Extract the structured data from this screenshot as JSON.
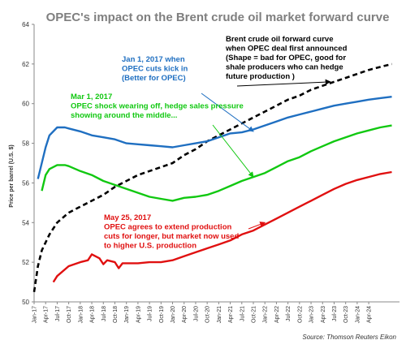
{
  "chart_data": {
    "type": "line",
    "title": "OPEC's impact on the Brent crude oil market forward curve",
    "ylabel": "Price per barrel (U.S. $)",
    "xlabel": "",
    "ylim": [
      50,
      64
    ],
    "yticks": [
      50,
      52,
      54,
      56,
      58,
      60,
      62,
      64
    ],
    "x_range": [
      "Jan-17",
      "Dec-24"
    ],
    "x_tick_labels": [
      "Jan-17",
      "Apr-17",
      "Jul-17",
      "Oct-17",
      "Jan-18",
      "Apr-18",
      "Jul-18",
      "Oct-18",
      "Jan-19",
      "Apr-19",
      "Jul-19",
      "Oct-19",
      "Jan-20",
      "Apr-20",
      "Jul-20",
      "Oct-20",
      "Jan-21",
      "Apr-21",
      "Jul-21",
      "Oct-21",
      "Jan-22",
      "Apr-22",
      "Jul-22",
      "Oct-22",
      "Jan-23",
      "Apr-23",
      "Jul-23",
      "Oct-23",
      "Jan-24",
      "Apr-24"
    ],
    "grid": false,
    "legend": "none",
    "source": "Source: Thomson Reuters Eikon",
    "series": [
      {
        "key": "dec2016",
        "color": "#000000",
        "dashed": true,
        "points": [
          [
            "Jan-17",
            50.5
          ],
          [
            "Feb-17",
            51.8
          ],
          [
            "Mar-17",
            52.6
          ],
          [
            "May-17",
            53.4
          ],
          [
            "Jul-17",
            54.0
          ],
          [
            "Oct-17",
            54.5
          ],
          [
            "Jan-18",
            54.8
          ],
          [
            "Apr-18",
            55.1
          ],
          [
            "Jul-18",
            55.4
          ],
          [
            "Oct-18",
            55.8
          ],
          [
            "Jan-19",
            56.1
          ],
          [
            "Apr-19",
            56.4
          ],
          [
            "Jul-19",
            56.6
          ],
          [
            "Oct-19",
            56.8
          ],
          [
            "Jan-20",
            57.0
          ],
          [
            "Apr-20",
            57.4
          ],
          [
            "Jul-20",
            57.7
          ],
          [
            "Oct-20",
            58.1
          ],
          [
            "Jan-21",
            58.4
          ],
          [
            "Apr-21",
            58.7
          ],
          [
            "Jul-21",
            59.0
          ],
          [
            "Oct-21",
            59.3
          ],
          [
            "Jan-22",
            59.6
          ],
          [
            "Apr-22",
            59.9
          ],
          [
            "Jul-22",
            60.2
          ],
          [
            "Oct-22",
            60.4
          ],
          [
            "Jan-23",
            60.7
          ],
          [
            "Apr-23",
            60.9
          ],
          [
            "Jul-23",
            61.1
          ],
          [
            "Oct-23",
            61.3
          ],
          [
            "Jan-24",
            61.5
          ],
          [
            "Apr-24",
            61.7
          ],
          [
            "Jul-24",
            61.85
          ],
          [
            "Oct-24",
            62.0
          ]
        ]
      },
      {
        "key": "jan2017",
        "color": "#1f6fc1",
        "dashed": false,
        "points": [
          [
            "Feb-17",
            56.2
          ],
          [
            "Apr-17",
            57.8
          ],
          [
            "May-17",
            58.4
          ],
          [
            "Jul-17",
            58.8
          ],
          [
            "Sep-17",
            58.8
          ],
          [
            "Oct-17",
            58.75
          ],
          [
            "Jan-18",
            58.6
          ],
          [
            "Apr-18",
            58.4
          ],
          [
            "Jul-18",
            58.3
          ],
          [
            "Oct-18",
            58.2
          ],
          [
            "Jan-19",
            58.0
          ],
          [
            "Apr-19",
            57.95
          ],
          [
            "Jul-19",
            57.9
          ],
          [
            "Oct-19",
            57.85
          ],
          [
            "Jan-20",
            57.8
          ],
          [
            "Apr-20",
            57.9
          ],
          [
            "Jul-20",
            58.0
          ],
          [
            "Oct-20",
            58.1
          ],
          [
            "Jan-21",
            58.3
          ],
          [
            "Apr-21",
            58.5
          ],
          [
            "Jul-21",
            58.55
          ],
          [
            "Oct-21",
            58.7
          ],
          [
            "Jan-22",
            58.9
          ],
          [
            "Apr-22",
            59.1
          ],
          [
            "Jul-22",
            59.3
          ],
          [
            "Oct-22",
            59.45
          ],
          [
            "Jan-23",
            59.6
          ],
          [
            "Apr-23",
            59.75
          ],
          [
            "Jul-23",
            59.9
          ],
          [
            "Oct-23",
            60.0
          ],
          [
            "Jan-24",
            60.1
          ],
          [
            "Apr-24",
            60.2
          ],
          [
            "Jul-24",
            60.28
          ],
          [
            "Oct-24",
            60.35
          ]
        ]
      },
      {
        "key": "mar2017",
        "color": "#11c811",
        "dashed": false,
        "points": [
          [
            "Mar-17",
            55.6
          ],
          [
            "Apr-17",
            56.4
          ],
          [
            "May-17",
            56.7
          ],
          [
            "Jul-17",
            56.9
          ],
          [
            "Sep-17",
            56.9
          ],
          [
            "Oct-17",
            56.85
          ],
          [
            "Jan-18",
            56.6
          ],
          [
            "Apr-18",
            56.4
          ],
          [
            "Jul-18",
            56.1
          ],
          [
            "Oct-18",
            55.9
          ],
          [
            "Jan-19",
            55.7
          ],
          [
            "Apr-19",
            55.5
          ],
          [
            "Jul-19",
            55.3
          ],
          [
            "Oct-19",
            55.2
          ],
          [
            "Jan-20",
            55.1
          ],
          [
            "Apr-20",
            55.25
          ],
          [
            "Jul-20",
            55.3
          ],
          [
            "Oct-20",
            55.4
          ],
          [
            "Jan-21",
            55.6
          ],
          [
            "Apr-21",
            55.85
          ],
          [
            "Jul-21",
            56.1
          ],
          [
            "Oct-21",
            56.3
          ],
          [
            "Jan-22",
            56.5
          ],
          [
            "Apr-22",
            56.8
          ],
          [
            "Jul-22",
            57.1
          ],
          [
            "Oct-22",
            57.3
          ],
          [
            "Jan-23",
            57.6
          ],
          [
            "Apr-23",
            57.85
          ],
          [
            "Jul-23",
            58.1
          ],
          [
            "Oct-23",
            58.3
          ],
          [
            "Jan-24",
            58.5
          ],
          [
            "Apr-24",
            58.65
          ],
          [
            "Jul-24",
            58.8
          ],
          [
            "Oct-24",
            58.9
          ]
        ]
      },
      {
        "key": "may2017",
        "color": "#e01010",
        "dashed": false,
        "points": [
          [
            "Jun-17",
            51.0
          ],
          [
            "Jul-17",
            51.3
          ],
          [
            "Oct-17",
            51.8
          ],
          [
            "Jan-18",
            52.0
          ],
          [
            "Mar-18",
            52.1
          ],
          [
            "Apr-18",
            52.4
          ],
          [
            "Jun-18",
            52.2
          ],
          [
            "Jul-18",
            51.9
          ],
          [
            "Aug-18",
            52.1
          ],
          [
            "Oct-18",
            52.0
          ],
          [
            "Nov-18",
            51.7
          ],
          [
            "Dec-18",
            51.95
          ],
          [
            "Jan-19",
            51.95
          ],
          [
            "Apr-19",
            51.95
          ],
          [
            "Jul-19",
            52.0
          ],
          [
            "Oct-19",
            52.0
          ],
          [
            "Jan-20",
            52.1
          ],
          [
            "Apr-20",
            52.3
          ],
          [
            "Jul-20",
            52.5
          ],
          [
            "Oct-20",
            52.7
          ],
          [
            "Jan-21",
            52.9
          ],
          [
            "Apr-21",
            53.1
          ],
          [
            "Jul-21",
            53.4
          ],
          [
            "Oct-21",
            53.6
          ],
          [
            "Jan-22",
            53.9
          ],
          [
            "Apr-22",
            54.2
          ],
          [
            "Jul-22",
            54.5
          ],
          [
            "Oct-22",
            54.8
          ],
          [
            "Jan-23",
            55.1
          ],
          [
            "Apr-23",
            55.4
          ],
          [
            "Jul-23",
            55.7
          ],
          [
            "Oct-23",
            55.95
          ],
          [
            "Jan-24",
            56.15
          ],
          [
            "Apr-24",
            56.3
          ],
          [
            "Jul-24",
            56.45
          ],
          [
            "Oct-24",
            56.55
          ]
        ]
      }
    ],
    "annotations": [
      {
        "key": "ann-brent",
        "color": "#000000",
        "lines": [
          "Brent crude oil forward curve",
          "when OPEC deal first announced",
          "(Shape = bad for OPEC,  good for",
          "shale producers who can hedge",
          "future production )"
        ],
        "arrow_to": [
          "Jun-23",
          61.1
        ]
      },
      {
        "key": "ann-jan",
        "color": "#1f6fc1",
        "lines": [
          "Jan 1, 2017 when",
          "OPEC cuts kick in",
          "(Better for OPEC)"
        ],
        "arrow_to": [
          "Oct-21",
          58.6
        ]
      },
      {
        "key": "ann-mar",
        "color": "#11c811",
        "lines": [
          "Mar 1, 2017",
          "OPEC shock wearing off, hedge sales pressure",
          "showing around the middle..."
        ],
        "arrow_to": [
          "Oct-21",
          56.3
        ]
      },
      {
        "key": "ann-may",
        "color": "#e01010",
        "lines": [
          "May 25, 2017",
          "OPEC agrees to extend production",
          "cuts for longer, but market now used",
          "to higher U.S. production"
        ],
        "arrow_to": [
          "Jan-22",
          54.0
        ]
      }
    ]
  }
}
